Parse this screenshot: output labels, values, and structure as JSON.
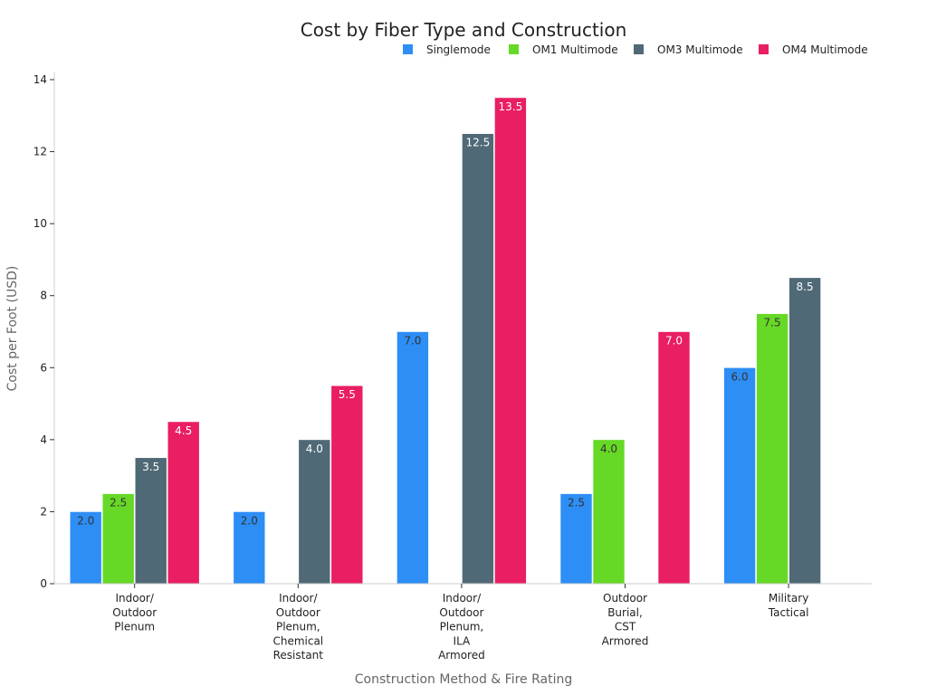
{
  "chart_data": {
    "type": "bar",
    "title": "Cost by Fiber Type and Construction",
    "xlabel": "Construction Method & Fire Rating",
    "ylabel": "Cost per Foot (USD)",
    "ylim": [
      0,
      14
    ],
    "yticks": [
      0,
      2,
      4,
      6,
      8,
      10,
      12,
      14
    ],
    "ytick_labels": [
      "0",
      "2",
      "4",
      "6",
      "8",
      "10",
      "12",
      "14"
    ],
    "grid": false,
    "legend_position": "top-right",
    "categories": [
      "Indoor/ Outdoor Plenum",
      "Indoor/ Outdoor Plenum, Chemical Resistant",
      "Indoor/ Outdoor Plenum, ILA Armored",
      "Outdoor Burial, CST Armored",
      "Military Tactical"
    ],
    "category_lines": [
      [
        "Indoor/",
        "Outdoor",
        "Plenum"
      ],
      [
        "Indoor/",
        "Outdoor",
        "Plenum,",
        "Chemical",
        "Resistant"
      ],
      [
        "Indoor/",
        "Outdoor",
        "Plenum,",
        "ILA",
        "Armored"
      ],
      [
        "Outdoor",
        "Burial,",
        "CST",
        "Armored"
      ],
      [
        "Military",
        "Tactical"
      ]
    ],
    "series": [
      {
        "name": "Singlemode",
        "color": "#2d8ef5",
        "label_color": "#333333",
        "values": [
          2.0,
          2.0,
          7.0,
          2.5,
          6.0
        ],
        "labels": [
          "2.0",
          "2.0",
          "7.0",
          "2.5",
          "6.0"
        ]
      },
      {
        "name": "OM1 Multimode",
        "color": "#66d826",
        "label_color": "#333333",
        "values": [
          2.5,
          null,
          null,
          4.0,
          7.5
        ],
        "labels": [
          "2.5",
          null,
          null,
          "4.0",
          "7.5"
        ]
      },
      {
        "name": "OM3 Multimode",
        "color": "#4f6a76",
        "label_color": "#ffffff",
        "values": [
          3.5,
          4.0,
          12.5,
          null,
          8.5
        ],
        "labels": [
          "3.5",
          "4.0",
          "12.5",
          null,
          "8.5"
        ]
      },
      {
        "name": "OM4 Multimode",
        "color": "#e91e63",
        "label_color": "#ffffff",
        "values": [
          4.5,
          5.5,
          13.5,
          7.0,
          null
        ],
        "labels": [
          "4.5",
          "5.5",
          "13.5",
          "7.0",
          null
        ]
      }
    ]
  }
}
